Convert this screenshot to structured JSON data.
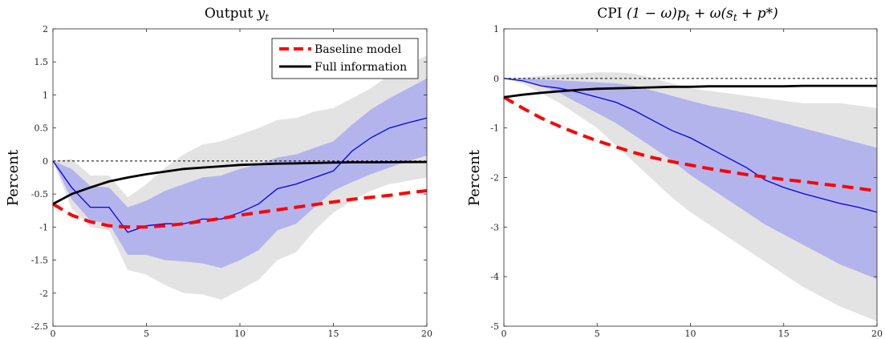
{
  "chart_data": [
    {
      "type": "line",
      "title_prefix": "Output ",
      "title_math": "y",
      "title_sub": "t",
      "ylabel": "Percent",
      "xlim": [
        0,
        20
      ],
      "ylim": [
        -2.5,
        2
      ],
      "xticks": [
        "0",
        "5",
        "10",
        "15",
        "20"
      ],
      "yticks": [
        "2",
        "1.5",
        "1",
        "0.5",
        "0",
        "-0.5",
        "-1",
        "-1.5",
        "-2",
        "-2.5"
      ],
      "zero_line": true,
      "legend": {
        "position": "top-right",
        "items": [
          "Baseline model",
          "Full information"
        ]
      },
      "x": [
        0,
        1,
        2,
        3,
        4,
        5,
        6,
        7,
        8,
        9,
        10,
        11,
        12,
        13,
        14,
        15,
        16,
        17,
        18,
        19,
        20
      ],
      "outer_band": {
        "upper": [
          0,
          0.03,
          -0.22,
          -0.22,
          -0.55,
          -0.35,
          -0.1,
          0.1,
          0.25,
          0.3,
          0.4,
          0.5,
          0.62,
          0.65,
          0.75,
          0.8,
          0.95,
          1.1,
          1.3,
          1.45,
          1.6
        ],
        "lower": [
          0,
          -0.72,
          -1.0,
          -1.05,
          -1.65,
          -1.72,
          -1.88,
          -2.0,
          -2.02,
          -2.1,
          -1.95,
          -1.8,
          -1.5,
          -1.38,
          -1.05,
          -0.78,
          -0.6,
          -0.45,
          -0.35,
          -0.3,
          -0.25
        ]
      },
      "inner_band": {
        "upper": [
          0,
          -0.12,
          -0.38,
          -0.4,
          -0.7,
          -0.6,
          -0.45,
          -0.35,
          -0.25,
          -0.22,
          -0.12,
          -0.05,
          0.05,
          0.1,
          0.2,
          0.3,
          0.55,
          0.78,
          0.95,
          1.1,
          1.25
        ],
        "lower": [
          0,
          -0.58,
          -0.9,
          -0.95,
          -1.42,
          -1.42,
          -1.5,
          -1.52,
          -1.55,
          -1.62,
          -1.5,
          -1.35,
          -1.05,
          -0.95,
          -0.7,
          -0.45,
          -0.32,
          -0.2,
          -0.1,
          0.0,
          0.08
        ]
      },
      "series": [
        {
          "name": "Baseline model",
          "color": "#ff0000",
          "style": "dashed",
          "values": [
            -0.65,
            -0.82,
            -0.92,
            -0.98,
            -1.0,
            -1.0,
            -0.98,
            -0.95,
            -0.91,
            -0.87,
            -0.82,
            -0.78,
            -0.74,
            -0.7,
            -0.66,
            -0.62,
            -0.58,
            -0.55,
            -0.52,
            -0.48,
            -0.45
          ]
        },
        {
          "name": "Full information",
          "color": "#000000",
          "style": "solid",
          "values": [
            -0.65,
            -0.5,
            -0.4,
            -0.31,
            -0.25,
            -0.2,
            -0.16,
            -0.12,
            -0.1,
            -0.08,
            -0.06,
            -0.05,
            -0.04,
            -0.035,
            -0.03,
            -0.025,
            -0.02,
            -0.02,
            -0.018,
            -0.016,
            -0.015
          ]
        },
        {
          "name": "",
          "color": "#0000ee",
          "style": "solid-thin",
          "values": [
            0,
            -0.4,
            -0.7,
            -0.7,
            -1.08,
            -0.98,
            -0.95,
            -0.95,
            -0.88,
            -0.88,
            -0.78,
            -0.65,
            -0.42,
            -0.35,
            -0.25,
            -0.15,
            0.15,
            0.35,
            0.5,
            0.58,
            0.65
          ]
        }
      ]
    },
    {
      "type": "line",
      "title_prefix": "CPI ",
      "title_math": "(1 − ω)p",
      "title_sub": "t",
      "title_math2": " + ω(s",
      "title_sub2": "t",
      "title_math3": " + p*)",
      "ylabel": "Percent",
      "xlim": [
        0,
        20
      ],
      "ylim": [
        -5,
        1
      ],
      "xticks": [
        "0",
        "5",
        "10",
        "15",
        "20"
      ],
      "yticks": [
        "1",
        "0",
        "-1",
        "-2",
        "-3",
        "-4",
        "-5"
      ],
      "zero_line": true,
      "x": [
        0,
        1,
        2,
        3,
        4,
        5,
        6,
        7,
        8,
        9,
        10,
        11,
        12,
        13,
        14,
        15,
        16,
        17,
        18,
        19,
        20
      ],
      "outer_band": {
        "upper": [
          0,
          0.02,
          0.05,
          0.08,
          0.1,
          0.12,
          0.12,
          0.1,
          0.0,
          -0.1,
          -0.2,
          -0.25,
          -0.3,
          -0.35,
          -0.4,
          -0.45,
          -0.5,
          -0.5,
          -0.5,
          -0.55,
          -0.6
        ],
        "lower": [
          0,
          -0.1,
          -0.3,
          -0.5,
          -0.75,
          -1.0,
          -1.35,
          -1.7,
          -2.05,
          -2.4,
          -2.7,
          -2.95,
          -3.2,
          -3.45,
          -3.7,
          -3.95,
          -4.2,
          -4.4,
          -4.6,
          -4.75,
          -4.9
        ]
      },
      "inner_band": {
        "upper": [
          0,
          0.0,
          -0.02,
          -0.04,
          -0.06,
          -0.08,
          -0.1,
          -0.15,
          -0.25,
          -0.35,
          -0.45,
          -0.55,
          -0.62,
          -0.7,
          -0.8,
          -0.9,
          -1.0,
          -1.1,
          -1.2,
          -1.3,
          -1.4
        ],
        "lower": [
          0,
          -0.05,
          -0.15,
          -0.3,
          -0.5,
          -0.7,
          -0.9,
          -1.15,
          -1.4,
          -1.65,
          -1.95,
          -2.2,
          -2.45,
          -2.7,
          -2.95,
          -3.15,
          -3.35,
          -3.55,
          -3.75,
          -3.9,
          -4.05
        ]
      },
      "series": [
        {
          "name": "Baseline model",
          "color": "#ff0000",
          "style": "dashed",
          "values": [
            -0.38,
            -0.6,
            -0.8,
            -0.97,
            -1.12,
            -1.26,
            -1.38,
            -1.5,
            -1.6,
            -1.68,
            -1.75,
            -1.82,
            -1.88,
            -1.94,
            -1.99,
            -2.04,
            -2.08,
            -2.13,
            -2.17,
            -2.22,
            -2.27
          ]
        },
        {
          "name": "Full information",
          "color": "#000000",
          "style": "solid",
          "values": [
            -0.38,
            -0.33,
            -0.29,
            -0.26,
            -0.23,
            -0.21,
            -0.2,
            -0.19,
            -0.18,
            -0.17,
            -0.17,
            -0.16,
            -0.16,
            -0.16,
            -0.16,
            -0.16,
            -0.15,
            -0.15,
            -0.15,
            -0.15,
            -0.15
          ]
        },
        {
          "name": "",
          "color": "#0000ee",
          "style": "solid-thin",
          "values": [
            0,
            -0.05,
            -0.15,
            -0.2,
            -0.28,
            -0.38,
            -0.48,
            -0.65,
            -0.85,
            -1.05,
            -1.2,
            -1.4,
            -1.6,
            -1.8,
            -2.05,
            -2.2,
            -2.32,
            -2.42,
            -2.52,
            -2.6,
            -2.7
          ]
        }
      ]
    }
  ]
}
